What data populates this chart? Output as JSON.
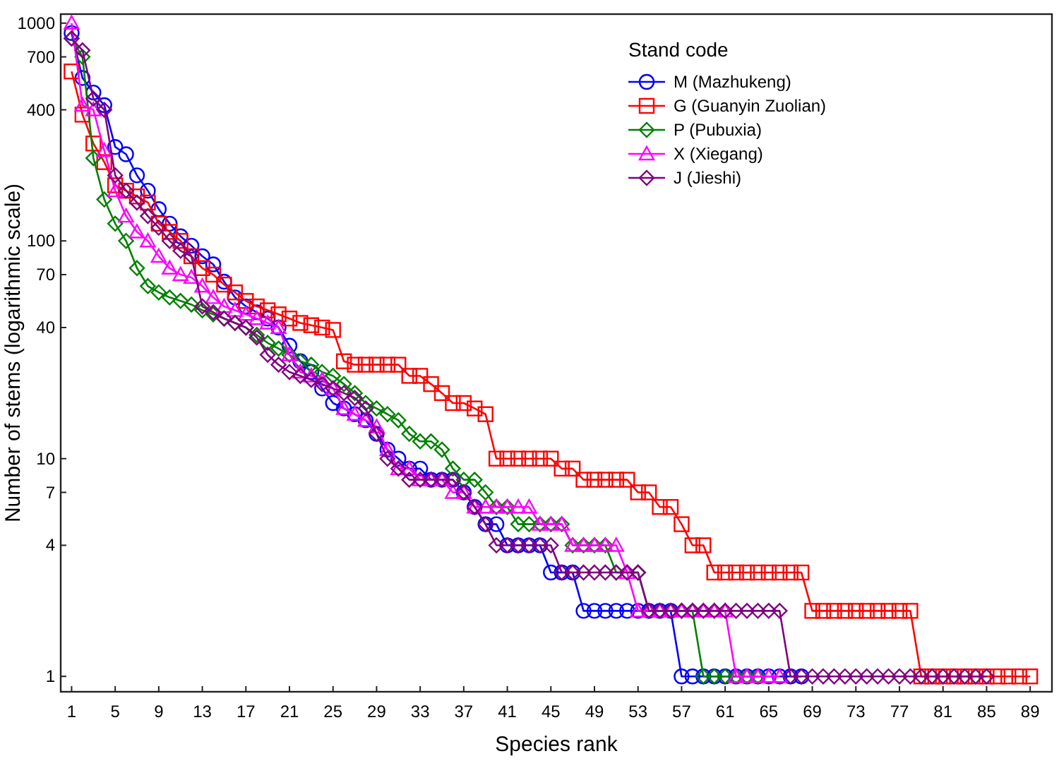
{
  "chart_data": {
    "type": "line",
    "xlabel": "Species rank",
    "ylabel": "Number of stems (logarithmic scale)",
    "legend_title": "Stand code",
    "legend": "top right",
    "log": "y",
    "grid": false,
    "x": [
      1,
      2,
      3,
      4,
      5,
      6,
      7,
      8,
      9,
      10,
      11,
      12,
      13,
      14,
      15,
      16,
      17,
      18,
      19,
      20,
      21,
      22,
      23,
      24,
      25,
      26,
      27,
      28,
      29,
      30,
      31,
      32,
      33,
      34,
      35,
      36,
      37,
      38,
      39,
      40,
      41,
      42,
      43,
      44,
      45,
      46,
      47,
      48,
      49,
      50,
      51,
      52,
      53,
      54,
      55,
      56,
      57,
      58,
      59,
      60,
      61,
      62,
      63,
      64,
      65,
      66,
      67,
      68,
      69,
      70,
      71,
      72,
      73,
      74,
      75,
      76,
      77,
      78,
      79,
      80,
      81,
      82,
      83,
      84,
      85,
      86,
      87,
      88,
      89
    ],
    "xlim": [
      0,
      91
    ],
    "xticks": [
      1,
      5,
      9,
      13,
      17,
      21,
      25,
      29,
      33,
      37,
      41,
      45,
      49,
      53,
      57,
      61,
      65,
      69,
      73,
      77,
      81,
      85,
      89
    ],
    "ylim": [
      0.85,
      1100
    ],
    "yticks": [
      1,
      4,
      7,
      10,
      40,
      70,
      100,
      400,
      700,
      1000
    ],
    "series": [
      {
        "name": "M (Mazhukeng)",
        "color": "#0000ff",
        "marker": "circle",
        "values": [
          900,
          560,
          480,
          420,
          270,
          250,
          200,
          170,
          140,
          120,
          105,
          95,
          85,
          78,
          65,
          55,
          50,
          47,
          44,
          40,
          33,
          28,
          25,
          21,
          18,
          17,
          16,
          15,
          13,
          11,
          10,
          9,
          9,
          8,
          8,
          8,
          7,
          6,
          5,
          5,
          4,
          4,
          4,
          4,
          3,
          3,
          3,
          2,
          2,
          2,
          2,
          2,
          2,
          2,
          2,
          2,
          1,
          1,
          1,
          1,
          1,
          1,
          1,
          1,
          1,
          1,
          1,
          1,
          null,
          null,
          null,
          null,
          null,
          null,
          null,
          null,
          null,
          null,
          null,
          null,
          null,
          null,
          null,
          null,
          null,
          null,
          null,
          null,
          null
        ]
      },
      {
        "name": "G (Guanyin Zuolian)",
        "color": "#ff0000",
        "marker": "square",
        "values": [
          600,
          380,
          280,
          230,
          180,
          170,
          160,
          150,
          120,
          110,
          100,
          85,
          75,
          70,
          63,
          58,
          53,
          50,
          48,
          46,
          44,
          42,
          41,
          40,
          39,
          28,
          27,
          27,
          27,
          27,
          27,
          24,
          24,
          22,
          20,
          18,
          18,
          17,
          16,
          10,
          10,
          10,
          10,
          10,
          10,
          9,
          9,
          8,
          8,
          8,
          8,
          8,
          7,
          7,
          6,
          6,
          5,
          4,
          4,
          3,
          3,
          3,
          3,
          3,
          3,
          3,
          3,
          3,
          2,
          2,
          2,
          2,
          2,
          2,
          2,
          2,
          2,
          2,
          1,
          1,
          1,
          1,
          1,
          1,
          1,
          1,
          1,
          1,
          1
        ]
      },
      {
        "name": "P (Pubuxia)",
        "color": "#008000",
        "marker": "diamond",
        "values": [
          850,
          700,
          240,
          155,
          120,
          100,
          75,
          62,
          58,
          55,
          53,
          51,
          48,
          46,
          44,
          42,
          40,
          37,
          34,
          32,
          30,
          28,
          27,
          25,
          24,
          22,
          20,
          18,
          17,
          16,
          15,
          13,
          12,
          12,
          11,
          9,
          8,
          8,
          7,
          6,
          6,
          5,
          5,
          5,
          5,
          5,
          4,
          4,
          4,
          4,
          3,
          3,
          3,
          2,
          2,
          2,
          2,
          2,
          1,
          1,
          1,
          1,
          1,
          1,
          null,
          null,
          null,
          null,
          null,
          null,
          null,
          null,
          null,
          null,
          null,
          null,
          null,
          null,
          null,
          null,
          null,
          null,
          null,
          null,
          null,
          null,
          null,
          null,
          null
        ]
      },
      {
        "name": "X (Xiegang)",
        "color": "#ff00ff",
        "marker": "triangle",
        "values": [
          1000,
          420,
          400,
          260,
          170,
          130,
          110,
          100,
          85,
          75,
          70,
          68,
          62,
          55,
          50,
          48,
          46,
          44,
          42,
          40,
          30,
          25,
          24,
          23,
          21,
          17,
          16,
          15,
          14,
          11,
          9,
          9,
          8,
          8,
          8,
          7,
          7,
          6,
          6,
          6,
          6,
          6,
          6,
          5,
          5,
          5,
          4,
          4,
          4,
          4,
          4,
          3,
          2,
          2,
          2,
          2,
          2,
          2,
          2,
          2,
          2,
          1,
          1,
          1,
          1,
          1,
          null,
          null,
          null,
          null,
          null,
          null,
          null,
          null,
          null,
          null,
          null,
          null,
          null,
          null,
          null,
          null,
          null,
          null,
          null,
          null,
          null,
          null,
          null
        ]
      },
      {
        "name": "J (Jieshi)",
        "color": "#800080",
        "marker": "diamond",
        "values": [
          850,
          750,
          450,
          400,
          200,
          170,
          150,
          130,
          115,
          100,
          90,
          85,
          50,
          47,
          44,
          42,
          40,
          36,
          30,
          27,
          25,
          24,
          23,
          22,
          21,
          20,
          19,
          17,
          13,
          10,
          9,
          8,
          8,
          8,
          8,
          8,
          7,
          6,
          5,
          4,
          4,
          4,
          4,
          4,
          4,
          3,
          3,
          3,
          3,
          3,
          3,
          3,
          3,
          2,
          2,
          2,
          2,
          2,
          2,
          2,
          2,
          2,
          2,
          2,
          2,
          2,
          1,
          1,
          1,
          1,
          1,
          1,
          1,
          1,
          1,
          1,
          1,
          1,
          1,
          1,
          1,
          1,
          1,
          1,
          1,
          null,
          null,
          null,
          null
        ]
      }
    ]
  }
}
